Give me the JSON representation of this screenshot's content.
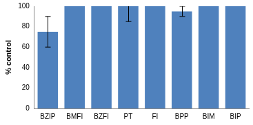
{
  "chart_data": {
    "type": "bar",
    "y_label": "% control",
    "categories": [
      "BZIP",
      "BMFI",
      "BZFI",
      "PT",
      "FI",
      "BPP",
      "BIM",
      "BIP"
    ],
    "values": [
      75,
      100,
      100,
      100,
      100,
      95,
      100,
      100
    ],
    "error": [
      15,
      0,
      0,
      15,
      0,
      5,
      0,
      0
    ],
    "color": "#4f81bd",
    "ylim": [
      0,
      100
    ],
    "yticks": [
      0,
      20,
      40,
      60,
      80,
      100
    ],
    "grid": false
  }
}
